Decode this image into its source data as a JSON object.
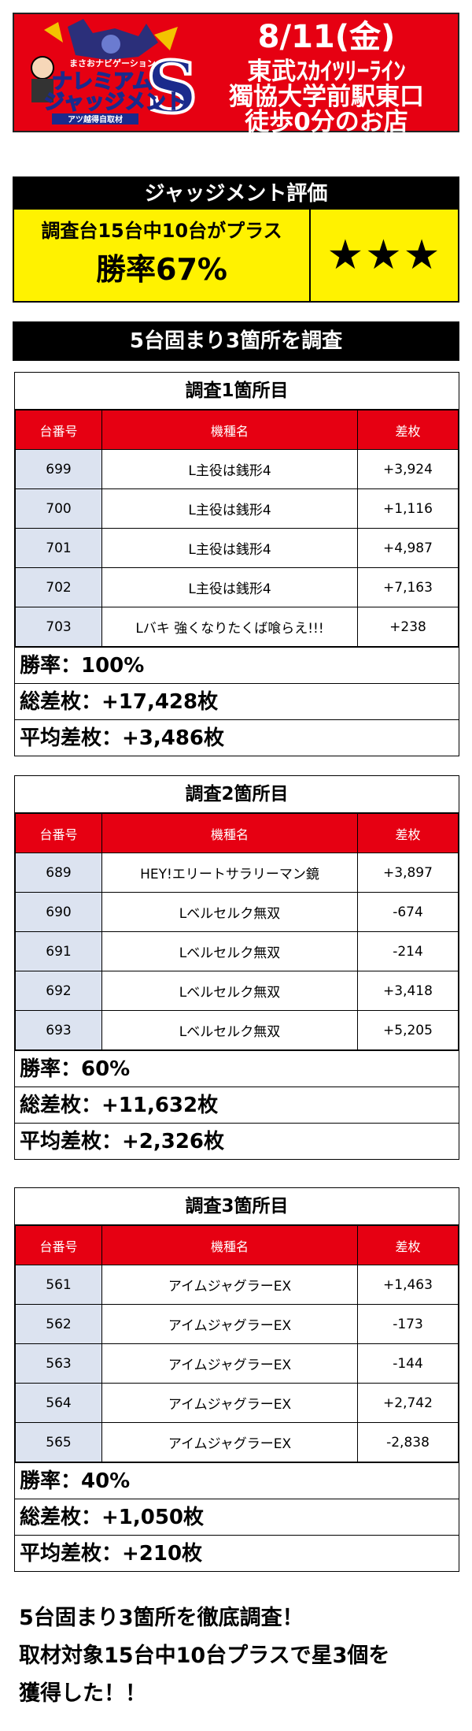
{
  "header": {
    "logo_text": "ナレミアム ジャッジメント S",
    "logo_sub": "まさおナビゲーション",
    "logo_tag": "アツ越得自取材",
    "date": "8/11(金)",
    "location_line1": "東武ｽｶｲﾂﾘｰﾗｲﾝ",
    "location_line2": "獨協大学前駅東口",
    "location_line3": "徒歩0分のお店",
    "color": "#e60012"
  },
  "judgement": {
    "title": "ジャッジメント評価",
    "line1": "調査台15台中10台がプラス",
    "line2": "勝率67%",
    "stars": "★★★"
  },
  "section_title": "5台固まり3箇所を調査",
  "columns": [
    "台番号",
    "機種名",
    "差枚"
  ],
  "surveys": [
    {
      "title": "調査1箇所目",
      "rows": [
        [
          "699",
          "L主役は銭形4",
          "+3,924"
        ],
        [
          "700",
          "L主役は銭形4",
          "+1,116"
        ],
        [
          "701",
          "L主役は銭形4",
          "+4,987"
        ],
        [
          "702",
          "L主役は銭形4",
          "+7,163"
        ],
        [
          "703",
          "Lバキ 強くなりたくば喰らえ!!!",
          "+238"
        ]
      ],
      "win_rate": "勝率：100%",
      "total": "総差枚：+17,428枚",
      "average": "平均差枚：+3,486枚"
    },
    {
      "title": "調査2箇所目",
      "rows": [
        [
          "689",
          "HEY!エリートサラリーマン鏡",
          "+3,897"
        ],
        [
          "690",
          "Lベルセルク無双",
          "-674"
        ],
        [
          "691",
          "Lベルセルク無双",
          "-214"
        ],
        [
          "692",
          "Lベルセルク無双",
          "+3,418"
        ],
        [
          "693",
          "Lベルセルク無双",
          "+5,205"
        ]
      ],
      "win_rate": "勝率：60%",
      "total": "総差枚：+11,632枚",
      "average": "平均差枚：+2,326枚"
    },
    {
      "title": "調査3箇所目",
      "rows": [
        [
          "561",
          "アイムジャグラーEX",
          "+1,463"
        ],
        [
          "562",
          "アイムジャグラーEX",
          "-173"
        ],
        [
          "563",
          "アイムジャグラーEX",
          "-144"
        ],
        [
          "564",
          "アイムジャグラーEX",
          "+2,742"
        ],
        [
          "565",
          "アイムジャグラーEX",
          "-2,838"
        ]
      ],
      "win_rate": "勝率：40%",
      "total": "総差枚：+1,050枚",
      "average": "平均差枚：+210枚"
    }
  ],
  "footer": {
    "line1": "5台固まり3箇所を徹底調査！",
    "line2": "取材対象15台中10台プラスで星3個を",
    "line3": "獲得した！！"
  }
}
